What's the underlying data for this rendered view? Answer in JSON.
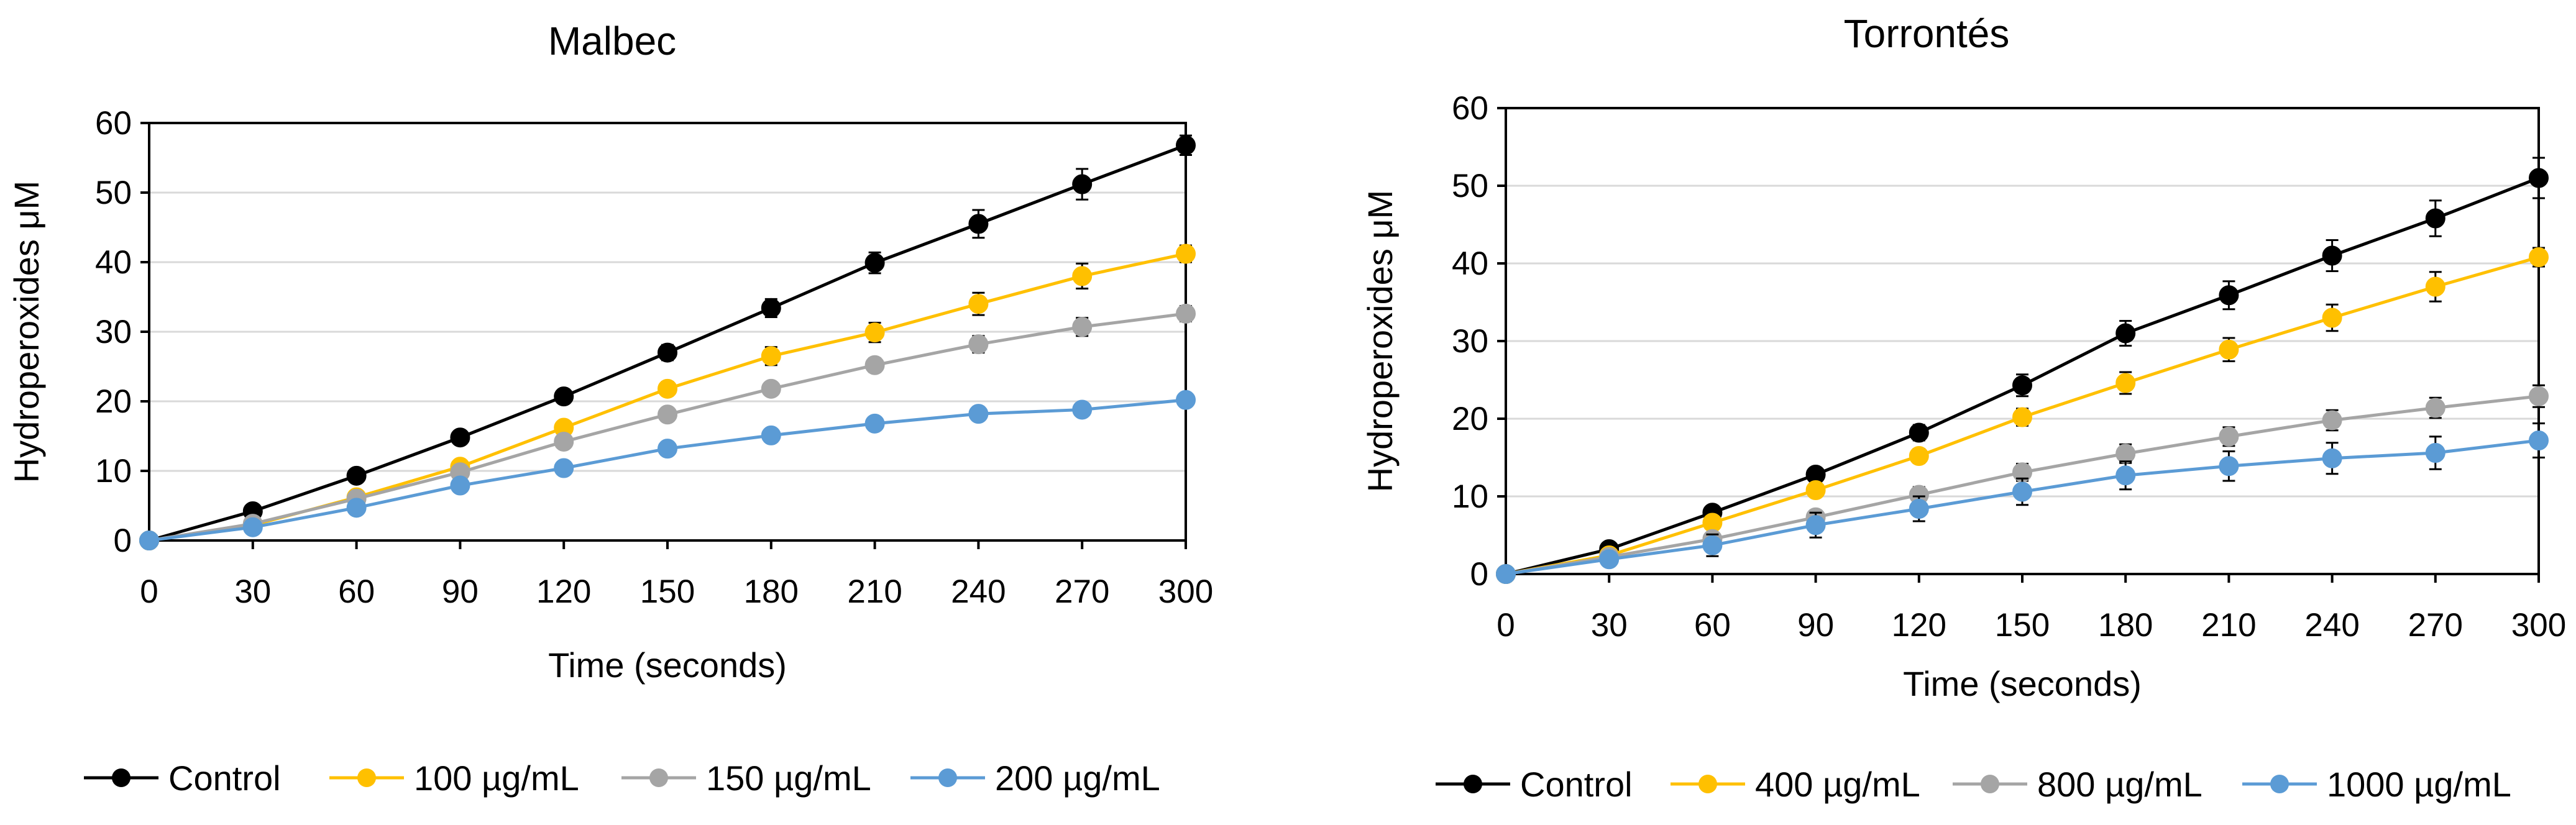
{
  "chart_data": [
    {
      "type": "line",
      "title": "Malbec",
      "xlabel": "Time (seconds)",
      "ylabel": "Hydroperoxides μM",
      "xlim": [
        0,
        300
      ],
      "ylim": [
        0,
        60
      ],
      "xticks": [
        0,
        30,
        60,
        90,
        120,
        150,
        180,
        210,
        240,
        270,
        300
      ],
      "yticks": [
        0,
        10,
        20,
        30,
        40,
        50,
        60
      ],
      "grid": "horizontal",
      "legend_position": "bottom",
      "x": [
        0,
        30,
        60,
        90,
        120,
        150,
        180,
        210,
        240,
        270,
        300
      ],
      "series": [
        {
          "name": "Control",
          "color": "#000000",
          "values": [
            0,
            4.2,
            9.3,
            14.8,
            20.7,
            27.0,
            33.4,
            39.9,
            45.5,
            51.2,
            56.8
          ],
          "errors": [
            0,
            0.5,
            0.6,
            0.8,
            1.0,
            1.1,
            1.3,
            1.5,
            2.0,
            2.2,
            1.4
          ]
        },
        {
          "name": "100 µg/mL",
          "color": "#FFC000",
          "values": [
            0,
            2.2,
            6.2,
            10.6,
            16.2,
            21.8,
            26.5,
            29.9,
            34.0,
            38.0,
            41.2
          ],
          "errors": [
            0,
            0.4,
            0.5,
            0.6,
            0.8,
            1.0,
            1.3,
            1.4,
            1.6,
            1.8,
            1.2
          ]
        },
        {
          "name": "150 µg/mL",
          "color": "#A5A5A5",
          "values": [
            0,
            2.4,
            6.0,
            9.8,
            14.2,
            18.1,
            21.8,
            25.2,
            28.2,
            30.7,
            32.6
          ],
          "errors": [
            0,
            0.3,
            0.4,
            0.5,
            0.6,
            0.8,
            0.9,
            1.0,
            1.2,
            1.3,
            1.1
          ]
        },
        {
          "name": "200 µg/mL",
          "color": "#5B9BD5",
          "values": [
            0,
            1.9,
            4.7,
            7.9,
            10.4,
            13.2,
            15.1,
            16.8,
            18.2,
            18.8,
            20.2
          ],
          "errors": [
            0,
            0.3,
            0.4,
            0.5,
            0.6,
            0.7,
            0.7,
            0.8,
            0.8,
            0.9,
            0.8
          ]
        }
      ],
      "legend": [
        "Control",
        "100 µg/mL",
        "150 µg/mL",
        "200 µg/mL"
      ]
    },
    {
      "type": "line",
      "title": "Torrontés",
      "xlabel": "Time (seconds)",
      "ylabel": "Hydroperoxides μM",
      "xlim": [
        0,
        300
      ],
      "ylim": [
        0,
        60
      ],
      "xticks": [
        0,
        30,
        60,
        90,
        120,
        150,
        180,
        210,
        240,
        270,
        300
      ],
      "yticks": [
        0,
        10,
        20,
        30,
        40,
        50,
        60
      ],
      "grid": "horizontal",
      "legend_position": "bottom",
      "x": [
        0,
        30,
        60,
        90,
        120,
        150,
        180,
        210,
        240,
        270,
        300
      ],
      "series": [
        {
          "name": "Control",
          "color": "#000000",
          "values": [
            0,
            3.2,
            7.9,
            12.8,
            18.2,
            24.3,
            31.0,
            35.9,
            41.0,
            45.8,
            51.0
          ],
          "errors": [
            0,
            0.6,
            0.8,
            0.9,
            1.0,
            1.4,
            1.6,
            1.8,
            2.0,
            2.3,
            2.6
          ]
        },
        {
          "name": "400 µg/mL",
          "color": "#FFC000",
          "values": [
            0,
            2.4,
            6.6,
            10.8,
            15.2,
            20.2,
            24.6,
            28.9,
            33.0,
            37.0,
            40.8
          ],
          "errors": [
            0,
            0.5,
            0.7,
            0.8,
            0.9,
            1.1,
            1.4,
            1.5,
            1.7,
            1.9,
            1.2
          ]
        },
        {
          "name": "800 µg/mL",
          "color": "#A5A5A5",
          "values": [
            0,
            2.2,
            4.5,
            7.3,
            10.2,
            13.1,
            15.5,
            17.7,
            19.8,
            21.4,
            22.9
          ],
          "errors": [
            0,
            0.3,
            0.8,
            0.9,
            1.0,
            1.1,
            1.2,
            1.2,
            1.3,
            1.3,
            1.4
          ]
        },
        {
          "name": "1000 µg/mL",
          "color": "#5B9BD5",
          "values": [
            0,
            1.9,
            3.7,
            6.3,
            8.4,
            10.6,
            12.7,
            13.9,
            14.9,
            15.6,
            17.2
          ],
          "errors": [
            0,
            0.5,
            1.4,
            1.6,
            1.6,
            1.7,
            1.8,
            1.9,
            2.0,
            2.1,
            2.2
          ]
        }
      ],
      "legend": [
        "Control",
        "400 µg/mL",
        "800 µg/mL",
        "1000 µg/mL"
      ]
    }
  ]
}
